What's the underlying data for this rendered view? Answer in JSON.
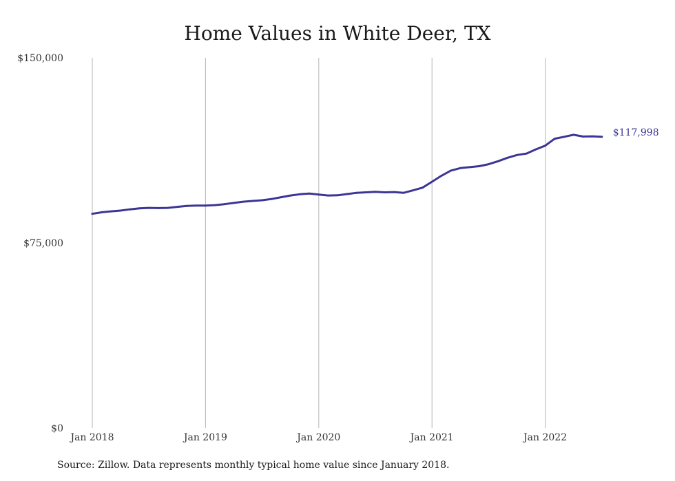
{
  "chart_data": {
    "type": "line",
    "title": "Home Values in White Deer, TX",
    "xlabel": "",
    "ylabel": "",
    "ylim": [
      0,
      150000
    ],
    "y_ticks": [
      {
        "value": 0,
        "label": "$0"
      },
      {
        "value": 75000,
        "label": "$75,000"
      },
      {
        "value": 150000,
        "label": "$150,000"
      }
    ],
    "x_ticks": [
      {
        "date": "2018-01",
        "label": "Jan 2018"
      },
      {
        "date": "2019-01",
        "label": "Jan 2019"
      },
      {
        "date": "2020-01",
        "label": "Jan 2020"
      },
      {
        "date": "2021-01",
        "label": "Jan 2021"
      },
      {
        "date": "2022-01",
        "label": "Jan 2022"
      }
    ],
    "x_range": [
      "2018-01",
      "2022-07"
    ],
    "grid": "vertical",
    "line_color": "#3b3596",
    "end_label": "$117,998",
    "series": [
      {
        "x": [
          "2018-01",
          "2018-02",
          "2018-03",
          "2018-04",
          "2018-05",
          "2018-06",
          "2018-07",
          "2018-08",
          "2018-09",
          "2018-10",
          "2018-11",
          "2018-12",
          "2019-01",
          "2019-02",
          "2019-03",
          "2019-04",
          "2019-05",
          "2019-06",
          "2019-07",
          "2019-08",
          "2019-09",
          "2019-10",
          "2019-11",
          "2019-12",
          "2020-01",
          "2020-02",
          "2020-03",
          "2020-04",
          "2020-05",
          "2020-06",
          "2020-07",
          "2020-08",
          "2020-09",
          "2020-10",
          "2020-11",
          "2020-12",
          "2021-01",
          "2021-02",
          "2021-03",
          "2021-04",
          "2021-05",
          "2021-06",
          "2021-07",
          "2021-08",
          "2021-09",
          "2021-10",
          "2021-11",
          "2021-12",
          "2022-01",
          "2022-02",
          "2022-03",
          "2022-04",
          "2022-05",
          "2022-06",
          "2022-07"
        ],
        "values": [
          86800,
          87400,
          87800,
          88100,
          88600,
          89000,
          89200,
          89100,
          89200,
          89600,
          90000,
          90100,
          90100,
          90300,
          90700,
          91200,
          91700,
          92000,
          92300,
          92800,
          93500,
          94200,
          94700,
          95000,
          94600,
          94200,
          94300,
          94800,
          95300,
          95500,
          95700,
          95500,
          95600,
          95300,
          96300,
          97400,
          99800,
          102200,
          104300,
          105300,
          105700,
          106100,
          106900,
          108100,
          109500,
          110600,
          111200,
          112900,
          114400,
          117200,
          118000,
          118800,
          118100,
          118200,
          118000
        ]
      }
    ]
  },
  "footer": {
    "source": "Source: Zillow. Data represents monthly typical home value since January 2018."
  }
}
